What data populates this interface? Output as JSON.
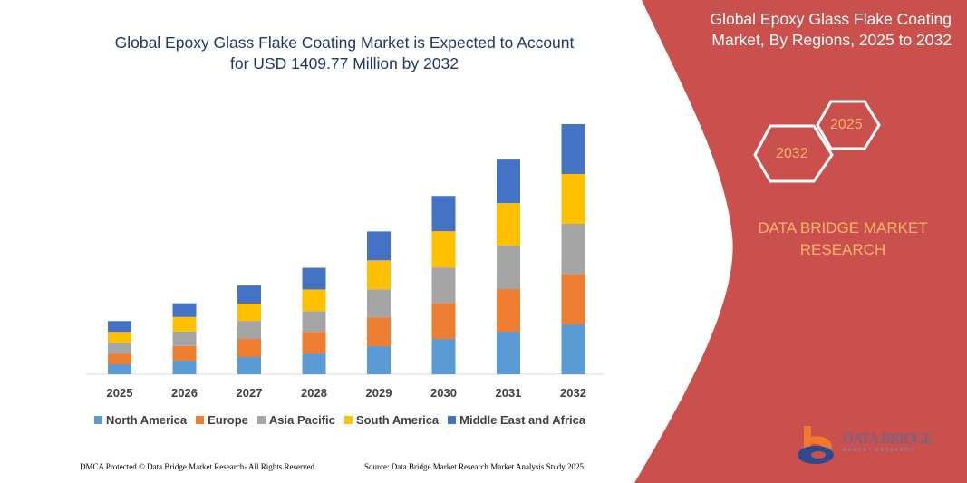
{
  "title": "Global Epoxy Glass Flake Coating Market is Expected to Account for USD 1409.77 Million by 2032",
  "side_panel": {
    "title": "Global Epoxy Glass Flake Coating Market, By Regions, 2025 to 2032",
    "hex_labels": [
      "2025",
      "2032"
    ],
    "brand": "DATA BRIDGE MARKET RESEARCH",
    "logo_text": "DATA BRIDGE",
    "logo_subtext": "MARKET RESEARCH",
    "color": "#c9504c"
  },
  "footer": {
    "left": "DMCA Protected © Data Bridge Market Research- All Rights Reserved.",
    "right": "Source: Data Bridge Market Research Market Analysis Study 2025"
  },
  "chart_data": {
    "type": "bar",
    "stacked": true,
    "categories": [
      "2025",
      "2026",
      "2027",
      "2028",
      "2029",
      "2030",
      "2031",
      "2032"
    ],
    "series": [
      {
        "name": "North America",
        "color": "#5b9bd5",
        "values": [
          56,
          77,
          97,
          117,
          158,
          199,
          240,
          281
        ]
      },
      {
        "name": "Europe",
        "color": "#ed7d31",
        "values": [
          61,
          82,
          102,
          122,
          163,
          199,
          240,
          281
        ]
      },
      {
        "name": "Asia Pacific",
        "color": "#a5a5a5",
        "values": [
          61,
          82,
          102,
          117,
          158,
          204,
          245,
          286
        ]
      },
      {
        "name": "South America",
        "color": "#ffc000",
        "values": [
          61,
          82,
          97,
          122,
          163,
          204,
          240,
          281
        ]
      },
      {
        "name": "Middle East and Africa",
        "color": "#4472c4",
        "values": [
          61,
          77,
          102,
          122,
          163,
          199,
          245,
          281
        ]
      }
    ],
    "xlabel": "",
    "ylabel": "",
    "grid": false,
    "legend": "bottom"
  }
}
